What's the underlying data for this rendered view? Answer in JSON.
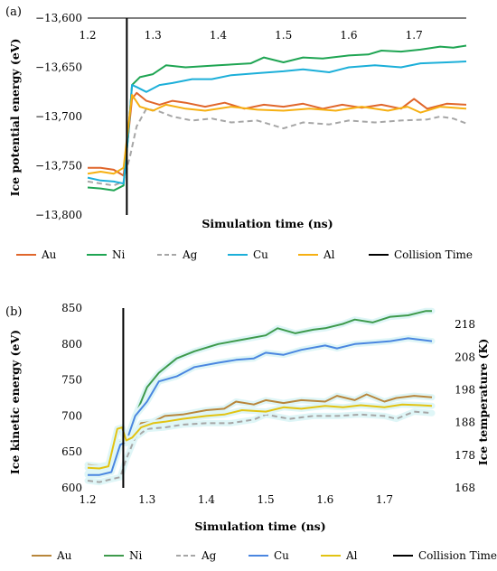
{
  "chart_data": [
    {
      "panel_label": "(a)",
      "type": "line",
      "xlabel": "Simulation time (ns)",
      "ylabel": "Ice potential energy (eV)",
      "xlim": [
        1.2,
        1.78
      ],
      "ylim": [
        -13800,
        -13600
      ],
      "x_ticks": [
        "1.2",
        "1.3",
        "1.4",
        "1.5",
        "1.6",
        "1.7"
      ],
      "x_tick_values": [
        1.2,
        1.3,
        1.4,
        1.5,
        1.6,
        1.7
      ],
      "y_ticks": [
        "−13,600",
        "−13,650",
        "−13,700",
        "−13,750",
        "−13,800"
      ],
      "y_tick_values": [
        -13600,
        -13650,
        -13700,
        -13750,
        -13800
      ],
      "collision_time": 1.26,
      "legend_position": "bottom",
      "series": [
        {
          "name": "Au",
          "color": "#E0662B",
          "dash": "solid",
          "points": [
            [
              1.2,
              -13752
            ],
            [
              1.22,
              -13752
            ],
            [
              1.24,
              -13754
            ],
            [
              1.255,
              -13760
            ],
            [
              1.262,
              -13720
            ],
            [
              1.268,
              -13682
            ],
            [
              1.275,
              -13676
            ],
            [
              1.29,
              -13684
            ],
            [
              1.31,
              -13688
            ],
            [
              1.33,
              -13684
            ],
            [
              1.35,
              -13686
            ],
            [
              1.38,
              -13690
            ],
            [
              1.41,
              -13686
            ],
            [
              1.44,
              -13692
            ],
            [
              1.47,
              -13688
            ],
            [
              1.5,
              -13690
            ],
            [
              1.53,
              -13687
            ],
            [
              1.56,
              -13692
            ],
            [
              1.59,
              -13688
            ],
            [
              1.62,
              -13691
            ],
            [
              1.65,
              -13688
            ],
            [
              1.68,
              -13692
            ],
            [
              1.7,
              -13682
            ],
            [
              1.72,
              -13692
            ],
            [
              1.75,
              -13687
            ],
            [
              1.78,
              -13688
            ]
          ]
        },
        {
          "name": "Ni",
          "color": "#1FA553",
          "dash": "solid",
          "points": [
            [
              1.2,
              -13772
            ],
            [
              1.22,
              -13773
            ],
            [
              1.24,
              -13775
            ],
            [
              1.255,
              -13770
            ],
            [
              1.262,
              -13720
            ],
            [
              1.268,
              -13668
            ],
            [
              1.28,
              -13660
            ],
            [
              1.3,
              -13657
            ],
            [
              1.32,
              -13648
            ],
            [
              1.35,
              -13650
            ],
            [
              1.4,
              -13648
            ],
            [
              1.45,
              -13646
            ],
            [
              1.47,
              -13640
            ],
            [
              1.5,
              -13645
            ],
            [
              1.53,
              -13640
            ],
            [
              1.56,
              -13641
            ],
            [
              1.6,
              -13638
            ],
            [
              1.63,
              -13637
            ],
            [
              1.65,
              -13633
            ],
            [
              1.68,
              -13634
            ],
            [
              1.71,
              -13632
            ],
            [
              1.74,
              -13629
            ],
            [
              1.76,
              -13630
            ],
            [
              1.78,
              -13628
            ]
          ]
        },
        {
          "name": "Ag",
          "color": "#A6A6A6",
          "dash": "dashed",
          "points": [
            [
              1.2,
              -13766
            ],
            [
              1.22,
              -13768
            ],
            [
              1.24,
              -13770
            ],
            [
              1.255,
              -13766
            ],
            [
              1.265,
              -13740
            ],
            [
              1.275,
              -13710
            ],
            [
              1.29,
              -13692
            ],
            [
              1.31,
              -13695
            ],
            [
              1.33,
              -13700
            ],
            [
              1.36,
              -13704
            ],
            [
              1.39,
              -13702
            ],
            [
              1.42,
              -13706
            ],
            [
              1.46,
              -13704
            ],
            [
              1.5,
              -13712
            ],
            [
              1.53,
              -13706
            ],
            [
              1.57,
              -13708
            ],
            [
              1.6,
              -13704
            ],
            [
              1.64,
              -13706
            ],
            [
              1.68,
              -13704
            ],
            [
              1.72,
              -13703
            ],
            [
              1.74,
              -13700
            ],
            [
              1.76,
              -13702
            ],
            [
              1.78,
              -13707
            ]
          ]
        },
        {
          "name": "Cu",
          "color": "#1CAFD9",
          "dash": "solid",
          "points": [
            [
              1.2,
              -13762
            ],
            [
              1.22,
              -13765
            ],
            [
              1.24,
              -13766
            ],
            [
              1.255,
              -13768
            ],
            [
              1.262,
              -13720
            ],
            [
              1.268,
              -13668
            ],
            [
              1.275,
              -13670
            ],
            [
              1.29,
              -13675
            ],
            [
              1.31,
              -13668
            ],
            [
              1.33,
              -13666
            ],
            [
              1.36,
              -13662
            ],
            [
              1.39,
              -13662
            ],
            [
              1.42,
              -13658
            ],
            [
              1.46,
              -13656
            ],
            [
              1.5,
              -13654
            ],
            [
              1.53,
              -13652
            ],
            [
              1.57,
              -13655
            ],
            [
              1.6,
              -13650
            ],
            [
              1.64,
              -13648
            ],
            [
              1.68,
              -13650
            ],
            [
              1.71,
              -13646
            ],
            [
              1.75,
              -13645
            ],
            [
              1.78,
              -13644
            ]
          ]
        },
        {
          "name": "Al",
          "color": "#F6B012",
          "dash": "solid",
          "points": [
            [
              1.2,
              -13758
            ],
            [
              1.22,
              -13756
            ],
            [
              1.24,
              -13758
            ],
            [
              1.255,
              -13752
            ],
            [
              1.262,
              -13712
            ],
            [
              1.268,
              -13678
            ],
            [
              1.28,
              -13690
            ],
            [
              1.3,
              -13694
            ],
            [
              1.32,
              -13688
            ],
            [
              1.35,
              -13692
            ],
            [
              1.38,
              -13694
            ],
            [
              1.42,
              -13690
            ],
            [
              1.46,
              -13693
            ],
            [
              1.5,
              -13694
            ],
            [
              1.54,
              -13692
            ],
            [
              1.58,
              -13694
            ],
            [
              1.62,
              -13690
            ],
            [
              1.66,
              -13694
            ],
            [
              1.69,
              -13690
            ],
            [
              1.71,
              -13696
            ],
            [
              1.74,
              -13690
            ],
            [
              1.78,
              -13692
            ]
          ]
        }
      ]
    },
    {
      "panel_label": "(b)",
      "type": "line",
      "xlabel": "Simulation time (ns)",
      "ylabel": "Ice kinetic energy (eV)",
      "y2label": "Ice temperature (K)",
      "xlim": [
        1.2,
        1.78
      ],
      "ylim": [
        600,
        850
      ],
      "y2lim": [
        168,
        223
      ],
      "x_ticks": [
        "1.2",
        "1.3",
        "1.4",
        "1.5",
        "1.6",
        "1.7"
      ],
      "x_tick_values": [
        1.2,
        1.3,
        1.4,
        1.5,
        1.6,
        1.7
      ],
      "y_ticks": [
        "850",
        "800",
        "750",
        "700",
        "650",
        "600"
      ],
      "y_tick_values": [
        850,
        800,
        750,
        700,
        650,
        600
      ],
      "y2_ticks": [
        "218",
        "208",
        "198",
        "188",
        "178",
        "168"
      ],
      "y2_tick_values": [
        218,
        208,
        198,
        188,
        178,
        168
      ],
      "collision_time": 1.26,
      "legend_position": "bottom",
      "series": [
        {
          "name": "Au",
          "color": "#B8863B",
          "dash": "solid",
          "points": [
            [
              1.2,
              632
            ],
            [
              1.22,
              630
            ],
            [
              1.235,
              632
            ],
            [
              1.25,
              680
            ],
            [
              1.258,
              678
            ],
            [
              1.265,
              662
            ],
            [
              1.275,
              668
            ],
            [
              1.29,
              690
            ],
            [
              1.31,
              692
            ],
            [
              1.33,
              700
            ],
            [
              1.36,
              702
            ],
            [
              1.4,
              708
            ],
            [
              1.43,
              710
            ],
            [
              1.45,
              720
            ],
            [
              1.48,
              716
            ],
            [
              1.5,
              722
            ],
            [
              1.53,
              718
            ],
            [
              1.56,
              722
            ],
            [
              1.6,
              720
            ],
            [
              1.62,
              728
            ],
            [
              1.65,
              722
            ],
            [
              1.67,
              730
            ],
            [
              1.7,
              720
            ],
            [
              1.72,
              725
            ],
            [
              1.75,
              728
            ],
            [
              1.78,
              726
            ]
          ]
        },
        {
          "name": "Ni",
          "color": "#3E9A4C",
          "dash": "solid",
          "points": [
            [
              1.2,
              620
            ],
            [
              1.22,
              620
            ],
            [
              1.24,
              624
            ],
            [
              1.255,
              664
            ],
            [
              1.265,
              665
            ],
            [
              1.28,
              700
            ],
            [
              1.3,
              740
            ],
            [
              1.32,
              760
            ],
            [
              1.35,
              780
            ],
            [
              1.38,
              790
            ],
            [
              1.42,
              800
            ],
            [
              1.46,
              806
            ],
            [
              1.5,
              812
            ],
            [
              1.52,
              822
            ],
            [
              1.55,
              815
            ],
            [
              1.58,
              820
            ],
            [
              1.6,
              822
            ],
            [
              1.63,
              828
            ],
            [
              1.65,
              834
            ],
            [
              1.68,
              830
            ],
            [
              1.71,
              838
            ],
            [
              1.74,
              840
            ],
            [
              1.77,
              846
            ],
            [
              1.78,
              846
            ]
          ]
        },
        {
          "name": "Ag",
          "color": "#A6A6A6",
          "dash": "dashed",
          "points": [
            [
              1.2,
              610
            ],
            [
              1.22,
              608
            ],
            [
              1.24,
              612
            ],
            [
              1.255,
              615
            ],
            [
              1.265,
              640
            ],
            [
              1.28,
              670
            ],
            [
              1.3,
              682
            ],
            [
              1.33,
              684
            ],
            [
              1.36,
              688
            ],
            [
              1.4,
              690
            ],
            [
              1.44,
              690
            ],
            [
              1.48,
              695
            ],
            [
              1.5,
              702
            ],
            [
              1.54,
              696
            ],
            [
              1.58,
              700
            ],
            [
              1.62,
              700
            ],
            [
              1.66,
              702
            ],
            [
              1.7,
              700
            ],
            [
              1.72,
              696
            ],
            [
              1.75,
              706
            ],
            [
              1.78,
              704
            ]
          ]
        },
        {
          "name": "Cu",
          "color": "#4A86E0",
          "dash": "solid",
          "points": [
            [
              1.2,
              618
            ],
            [
              1.22,
              618
            ],
            [
              1.24,
              622
            ],
            [
              1.255,
              660
            ],
            [
              1.265,
              664
            ],
            [
              1.28,
              700
            ],
            [
              1.3,
              720
            ],
            [
              1.32,
              748
            ],
            [
              1.35,
              755
            ],
            [
              1.38,
              768
            ],
            [
              1.42,
              774
            ],
            [
              1.45,
              778
            ],
            [
              1.48,
              780
            ],
            [
              1.5,
              788
            ],
            [
              1.53,
              785
            ],
            [
              1.56,
              792
            ],
            [
              1.6,
              798
            ],
            [
              1.62,
              794
            ],
            [
              1.65,
              800
            ],
            [
              1.68,
              802
            ],
            [
              1.71,
              804
            ],
            [
              1.74,
              808
            ],
            [
              1.76,
              806
            ],
            [
              1.78,
              804
            ]
          ]
        },
        {
          "name": "Al",
          "color": "#E2C312",
          "dash": "solid",
          "points": [
            [
              1.2,
              628
            ],
            [
              1.22,
              627
            ],
            [
              1.235,
              630
            ],
            [
              1.25,
              682
            ],
            [
              1.258,
              684
            ],
            [
              1.265,
              666
            ],
            [
              1.275,
              670
            ],
            [
              1.29,
              684
            ],
            [
              1.31,
              690
            ],
            [
              1.33,
              692
            ],
            [
              1.36,
              696
            ],
            [
              1.4,
              700
            ],
            [
              1.43,
              702
            ],
            [
              1.46,
              708
            ],
            [
              1.5,
              706
            ],
            [
              1.53,
              712
            ],
            [
              1.56,
              710
            ],
            [
              1.6,
              714
            ],
            [
              1.63,
              712
            ],
            [
              1.66,
              715
            ],
            [
              1.7,
              712
            ],
            [
              1.73,
              716
            ],
            [
              1.76,
              715
            ],
            [
              1.78,
              714
            ]
          ]
        }
      ]
    }
  ],
  "legend": {
    "items": [
      {
        "label": "Au"
      },
      {
        "label": "Ni"
      },
      {
        "label": "Ag"
      },
      {
        "label": "Cu"
      },
      {
        "label": "Al"
      }
    ],
    "collision_label": "Collision Time",
    "collision_color": "#000000"
  }
}
